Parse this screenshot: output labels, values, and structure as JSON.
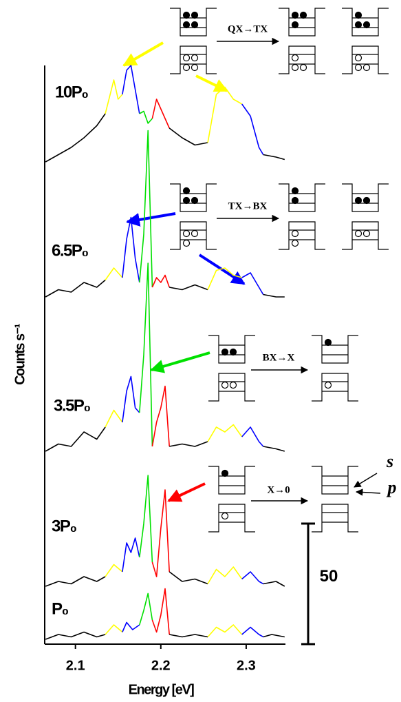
{
  "chart_data": {
    "type": "line",
    "xlabel": "Energy [eV]",
    "ylabel": "Counts s⁻¹",
    "xlim": [
      2.064,
      2.346
    ],
    "ylim": [
      0,
      240
    ],
    "xticks": [
      2.1,
      2.2,
      2.3
    ],
    "segment_colors": [
      "#000000",
      "#ffff00",
      "#0000ff",
      "#00e000",
      "#ff0000",
      "#000000",
      "#ffff00",
      "#0000ff",
      "#000000"
    ],
    "series": [
      {
        "name": "10P₀",
        "segments": [
          {
            "x": [
              2.065,
              2.08,
              2.095,
              2.11,
              2.125,
              2.135
            ],
            "values": [
              200,
              203,
              206,
              210,
              215,
              220
            ]
          },
          {
            "x": [
              2.135,
              2.145,
              2.15,
              2.155
            ],
            "values": [
              220,
              234,
              226,
              228
            ]
          },
          {
            "x": [
              2.155,
              2.16,
              2.165,
              2.17,
              2.175
            ],
            "values": [
              228,
              238,
              240,
              230,
              220
            ]
          },
          {
            "x": [
              2.175,
              2.18,
              2.185,
              2.19
            ],
            "values": [
              220,
              221,
              216,
              218
            ]
          },
          {
            "x": [
              2.19,
              2.195,
              2.2,
              2.205,
              2.21
            ],
            "values": [
              218,
              226,
              222,
              218,
              214
            ]
          },
          {
            "x": [
              2.21,
              2.225,
              2.24,
              2.255
            ],
            "values": [
              214,
              210,
              207,
              208
            ]
          },
          {
            "x": [
              2.255,
              2.265,
              2.275,
              2.285,
              2.295
            ],
            "values": [
              208,
              228,
              231,
              226,
              224
            ]
          },
          {
            "x": [
              2.295,
              2.305,
              2.315,
              2.32
            ],
            "values": [
              224,
              219,
              206,
              203
            ]
          },
          {
            "x": [
              2.32,
              2.335,
              2.345
            ],
            "values": [
              203,
              202,
              201
            ]
          }
        ]
      },
      {
        "name": "6.5P₀",
        "segments": [
          {
            "x": [
              2.065,
              2.08,
              2.095,
              2.11,
              2.125,
              2.135
            ],
            "values": [
              144,
              147,
              146,
              150,
              148,
              151
            ]
          },
          {
            "x": [
              2.135,
              2.145,
              2.155
            ],
            "values": [
              151,
              156,
              152
            ]
          },
          {
            "x": [
              2.155,
              2.16,
              2.165,
              2.17,
              2.175
            ],
            "values": [
              152,
              168,
              177,
              160,
              150
            ]
          },
          {
            "x": [
              2.175,
              2.18,
              2.185,
              2.19
            ],
            "values": [
              150,
              170,
              213,
              148
            ]
          },
          {
            "x": [
              2.19,
              2.195,
              2.2,
              2.205,
              2.21
            ],
            "values": [
              148,
              152,
              150,
              153,
              148
            ]
          },
          {
            "x": [
              2.21,
              2.225,
              2.24,
              2.255
            ],
            "values": [
              148,
              147,
              149,
              147
            ]
          },
          {
            "x": [
              2.255,
              2.265,
              2.275,
              2.285,
              2.295
            ],
            "values": [
              147,
              155,
              156,
              153,
              152
            ]
          },
          {
            "x": [
              2.295,
              2.305,
              2.315,
              2.32
            ],
            "values": [
              152,
              154,
              148,
              145
            ]
          },
          {
            "x": [
              2.32,
              2.335,
              2.345
            ],
            "values": [
              145,
              144,
              144
            ]
          }
        ]
      },
      {
        "name": "3.5P₀",
        "segments": [
          {
            "x": [
              2.065,
              2.08,
              2.095,
              2.11,
              2.125,
              2.135
            ],
            "values": [
              80,
              83,
              82,
              88,
              85,
              90
            ]
          },
          {
            "x": [
              2.135,
              2.145,
              2.155
            ],
            "values": [
              90,
              97,
              92
            ]
          },
          {
            "x": [
              2.155,
              2.16,
              2.165,
              2.17,
              2.175
            ],
            "values": [
              92,
              105,
              111,
              98,
              96
            ]
          },
          {
            "x": [
              2.175,
              2.18,
              2.185,
              2.19
            ],
            "values": [
              96,
              120,
              158,
              82
            ]
          },
          {
            "x": [
              2.19,
              2.195,
              2.2,
              2.205,
              2.21
            ],
            "values": [
              82,
              92,
              98,
              107,
              82
            ]
          },
          {
            "x": [
              2.21,
              2.225,
              2.24,
              2.255
            ],
            "values": [
              82,
              83,
              82,
              84
            ]
          },
          {
            "x": [
              2.255,
              2.265,
              2.275,
              2.285,
              2.295
            ],
            "values": [
              84,
              90,
              88,
              91,
              86
            ]
          },
          {
            "x": [
              2.295,
              2.305,
              2.315,
              2.32
            ],
            "values": [
              86,
              90,
              84,
              82
            ]
          },
          {
            "x": [
              2.32,
              2.335,
              2.345
            ],
            "values": [
              82,
              81,
              80
            ]
          }
        ]
      },
      {
        "name": "3P₀",
        "segments": [
          {
            "x": [
              2.065,
              2.08,
              2.095,
              2.11,
              2.125,
              2.135
            ],
            "values": [
              24,
              26,
              25,
              28,
              26,
              28
            ]
          },
          {
            "x": [
              2.135,
              2.145,
              2.155
            ],
            "values": [
              28,
              33,
              30
            ]
          },
          {
            "x": [
              2.155,
              2.16,
              2.165,
              2.17,
              2.175
            ],
            "values": [
              30,
              42,
              38,
              44,
              36
            ]
          },
          {
            "x": [
              2.175,
              2.18,
              2.185,
              2.19
            ],
            "values": [
              36,
              50,
              70,
              34
            ]
          },
          {
            "x": [
              2.19,
              2.195,
              2.2,
              2.205,
              2.21
            ],
            "values": [
              34,
              28,
              48,
              64,
              30
            ]
          },
          {
            "x": [
              2.21,
              2.225,
              2.24,
              2.255
            ],
            "values": [
              30,
              26,
              27,
              25
            ]
          },
          {
            "x": [
              2.255,
              2.265,
              2.275,
              2.285,
              2.295
            ],
            "values": [
              25,
              31,
              28,
              32,
              27
            ]
          },
          {
            "x": [
              2.295,
              2.305,
              2.315,
              2.32
            ],
            "values": [
              27,
              30,
              26,
              25
            ]
          },
          {
            "x": [
              2.32,
              2.335,
              2.345
            ],
            "values": [
              25,
              26,
              24
            ]
          }
        ]
      },
      {
        "name": "P₀",
        "segments": [
          {
            "x": [
              2.065,
              2.08,
              2.095,
              2.11,
              2.125,
              2.135
            ],
            "values": [
              2,
              4,
              3,
              5,
              3,
              4
            ]
          },
          {
            "x": [
              2.135,
              2.145,
              2.155
            ],
            "values": [
              4,
              8,
              5
            ]
          },
          {
            "x": [
              2.155,
              2.16,
              2.167,
              2.175
            ],
            "values": [
              5,
              9,
              6,
              8
            ]
          },
          {
            "x": [
              2.175,
              2.18,
              2.185,
              2.19
            ],
            "values": [
              8,
              14,
              21,
              10
            ]
          },
          {
            "x": [
              2.19,
              2.195,
              2.2,
              2.205,
              2.21
            ],
            "values": [
              10,
              5,
              12,
              23,
              4
            ]
          },
          {
            "x": [
              2.21,
              2.225,
              2.24,
              2.255
            ],
            "values": [
              4,
              3,
              4,
              3
            ]
          },
          {
            "x": [
              2.255,
              2.265,
              2.275,
              2.285,
              2.295
            ],
            "values": [
              3,
              7,
              5,
              8,
              4
            ]
          },
          {
            "x": [
              2.295,
              2.305,
              2.315,
              2.32
            ],
            "values": [
              4,
              7,
              4,
              3
            ]
          },
          {
            "x": [
              2.32,
              2.33,
              2.345
            ],
            "values": [
              3,
              4,
              3
            ]
          }
        ]
      }
    ],
    "scale_bar": 50,
    "annotations": [
      "QX→TX",
      "TX→BX",
      "BX→X",
      "X→0",
      "s",
      "p"
    ]
  }
}
